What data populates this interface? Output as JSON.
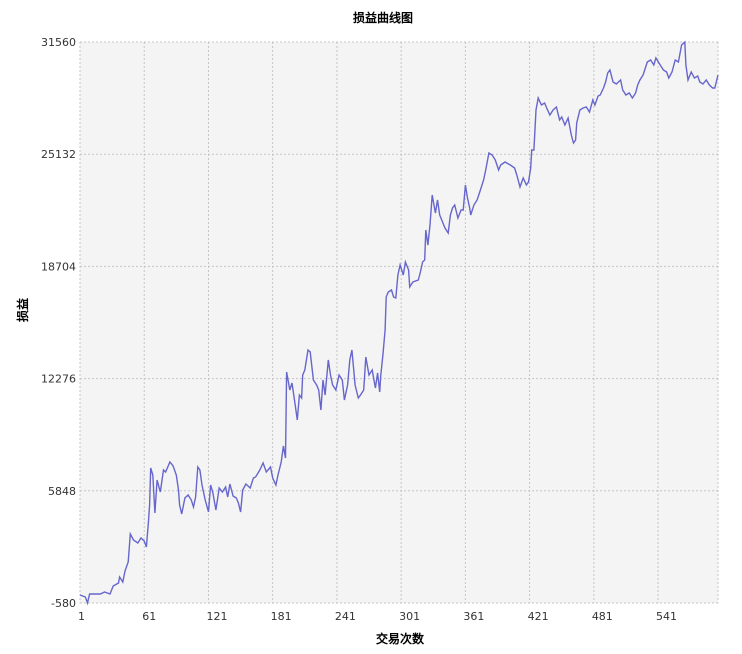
{
  "chart_data": {
    "type": "line",
    "title": "损益曲线图",
    "xlabel": "交易次数",
    "ylabel": "损益",
    "xlim": [
      1,
      597
    ],
    "ylim": [
      -580,
      31560
    ],
    "xticks": [
      1,
      61,
      121,
      181,
      241,
      301,
      361,
      421,
      481,
      541
    ],
    "yticks": [
      -580,
      5848,
      12276,
      18704,
      25132,
      31560
    ],
    "grid": true,
    "colors": {
      "line": "#6666cc",
      "plot_bg": "#f4f4f4",
      "grid": "#c4c4c4"
    },
    "series": [
      {
        "name": "损益",
        "points": [
          [
            1,
            -122
          ],
          [
            6,
            -236
          ],
          [
            8,
            -580
          ],
          [
            10,
            -64
          ],
          [
            20,
            -64
          ],
          [
            24,
            50
          ],
          [
            29,
            -64
          ],
          [
            32,
            394
          ],
          [
            37,
            566
          ],
          [
            38,
            910
          ],
          [
            41,
            623
          ],
          [
            43,
            1253
          ],
          [
            46,
            1769
          ],
          [
            48,
            3373
          ],
          [
            51,
            3029
          ],
          [
            55,
            2858
          ],
          [
            58,
            3144
          ],
          [
            61,
            2973
          ],
          [
            63,
            2629
          ],
          [
            65,
            4119
          ],
          [
            66,
            5035
          ],
          [
            67,
            7155
          ],
          [
            69,
            6754
          ],
          [
            71,
            4577
          ],
          [
            73,
            6467
          ],
          [
            76,
            5780
          ],
          [
            79,
            7040
          ],
          [
            81,
            6926
          ],
          [
            85,
            7499
          ],
          [
            88,
            7269
          ],
          [
            91,
            6754
          ],
          [
            93,
            5894
          ],
          [
            94,
            5035
          ],
          [
            96,
            4519
          ],
          [
            99,
            5436
          ],
          [
            102,
            5608
          ],
          [
            105,
            5322
          ],
          [
            107,
            4921
          ],
          [
            109,
            5494
          ],
          [
            111,
            7212
          ],
          [
            113,
            7040
          ],
          [
            115,
            6181
          ],
          [
            118,
            5322
          ],
          [
            121,
            4634
          ],
          [
            123,
            6181
          ],
          [
            125,
            5780
          ],
          [
            128,
            4749
          ],
          [
            131,
            6009
          ],
          [
            134,
            5780
          ],
          [
            137,
            6066
          ],
          [
            139,
            5494
          ],
          [
            141,
            6239
          ],
          [
            144,
            5551
          ],
          [
            147,
            5436
          ],
          [
            149,
            5150
          ],
          [
            151,
            4634
          ],
          [
            153,
            5894
          ],
          [
            156,
            6239
          ],
          [
            160,
            6009
          ],
          [
            163,
            6582
          ],
          [
            165,
            6639
          ],
          [
            169,
            7040
          ],
          [
            172,
            7441
          ],
          [
            175,
            6926
          ],
          [
            179,
            7212
          ],
          [
            181,
            6582
          ],
          [
            184,
            6181
          ],
          [
            186,
            6754
          ],
          [
            189,
            7499
          ],
          [
            191,
            8415
          ],
          [
            193,
            7728
          ],
          [
            194,
            12655
          ],
          [
            197,
            11623
          ],
          [
            199,
            12024
          ],
          [
            202,
            10763
          ],
          [
            204,
            9904
          ],
          [
            206,
            11336
          ],
          [
            208,
            11164
          ],
          [
            209,
            12482
          ],
          [
            211,
            12769
          ],
          [
            214,
            13915
          ],
          [
            216,
            13800
          ],
          [
            219,
            12196
          ],
          [
            222,
            11910
          ],
          [
            224,
            11623
          ],
          [
            226,
            10477
          ],
          [
            228,
            12196
          ],
          [
            230,
            11336
          ],
          [
            233,
            13341
          ],
          [
            235,
            12482
          ],
          [
            237,
            11910
          ],
          [
            240,
            11623
          ],
          [
            243,
            12482
          ],
          [
            246,
            12196
          ],
          [
            248,
            11050
          ],
          [
            251,
            11910
          ],
          [
            253,
            13341
          ],
          [
            255,
            13915
          ],
          [
            258,
            11910
          ],
          [
            261,
            11164
          ],
          [
            263,
            11336
          ],
          [
            266,
            11623
          ],
          [
            268,
            13513
          ],
          [
            271,
            12482
          ],
          [
            274,
            12769
          ],
          [
            277,
            11738
          ],
          [
            279,
            12597
          ],
          [
            281,
            11508
          ],
          [
            282,
            12482
          ],
          [
            284,
            13628
          ],
          [
            286,
            15060
          ],
          [
            287,
            16951
          ],
          [
            289,
            17237
          ],
          [
            292,
            17352
          ],
          [
            294,
            16951
          ],
          [
            296,
            16894
          ],
          [
            298,
            18211
          ],
          [
            300,
            18784
          ],
          [
            303,
            18211
          ],
          [
            305,
            18956
          ],
          [
            308,
            18498
          ],
          [
            309,
            17524
          ],
          [
            312,
            17811
          ],
          [
            317,
            17925
          ],
          [
            319,
            18383
          ],
          [
            321,
            18956
          ],
          [
            323,
            19071
          ],
          [
            324,
            20789
          ],
          [
            326,
            19930
          ],
          [
            328,
            21076
          ],
          [
            330,
            22794
          ],
          [
            333,
            21763
          ],
          [
            335,
            22508
          ],
          [
            337,
            21649
          ],
          [
            342,
            20904
          ],
          [
            345,
            20617
          ],
          [
            347,
            21649
          ],
          [
            349,
            22050
          ],
          [
            351,
            22222
          ],
          [
            354,
            21477
          ],
          [
            357,
            21935
          ],
          [
            359,
            21935
          ],
          [
            361,
            23367
          ],
          [
            363,
            22623
          ],
          [
            365,
            22050
          ],
          [
            366,
            21649
          ],
          [
            369,
            22222
          ],
          [
            372,
            22508
          ],
          [
            375,
            23081
          ],
          [
            378,
            23654
          ],
          [
            380,
            24227
          ],
          [
            383,
            25201
          ],
          [
            386,
            25086
          ],
          [
            389,
            24800
          ],
          [
            392,
            24227
          ],
          [
            394,
            24513
          ],
          [
            398,
            24685
          ],
          [
            403,
            24513
          ],
          [
            407,
            24341
          ],
          [
            409,
            23940
          ],
          [
            412,
            23253
          ],
          [
            415,
            23768
          ],
          [
            418,
            23367
          ],
          [
            420,
            23539
          ],
          [
            422,
            24341
          ],
          [
            423,
            25372
          ],
          [
            425,
            25372
          ],
          [
            427,
            27664
          ],
          [
            429,
            28351
          ],
          [
            432,
            27950
          ],
          [
            435,
            28065
          ],
          [
            437,
            27779
          ],
          [
            440,
            27378
          ],
          [
            443,
            27664
          ],
          [
            446,
            27836
          ],
          [
            449,
            27091
          ],
          [
            451,
            27263
          ],
          [
            454,
            26805
          ],
          [
            457,
            27206
          ],
          [
            460,
            26232
          ],
          [
            462,
            25774
          ],
          [
            464,
            25945
          ],
          [
            465,
            26919
          ],
          [
            468,
            27664
          ],
          [
            471,
            27779
          ],
          [
            474,
            27836
          ],
          [
            477,
            27550
          ],
          [
            480,
            28237
          ],
          [
            482,
            27950
          ],
          [
            485,
            28466
          ],
          [
            487,
            28524
          ],
          [
            490,
            28925
          ],
          [
            492,
            29268
          ],
          [
            494,
            29784
          ],
          [
            496,
            29956
          ],
          [
            499,
            29268
          ],
          [
            502,
            29154
          ],
          [
            506,
            29383
          ],
          [
            508,
            28810
          ],
          [
            511,
            28524
          ],
          [
            514,
            28638
          ],
          [
            517,
            28352
          ],
          [
            520,
            28638
          ],
          [
            522,
            29096
          ],
          [
            524,
            29383
          ],
          [
            527,
            29669
          ],
          [
            531,
            30414
          ],
          [
            534,
            30529
          ],
          [
            537,
            30242
          ],
          [
            539,
            30643
          ],
          [
            543,
            30242
          ],
          [
            546,
            29956
          ],
          [
            549,
            29841
          ],
          [
            551,
            29497
          ],
          [
            554,
            29841
          ],
          [
            557,
            30529
          ],
          [
            560,
            30414
          ],
          [
            563,
            31388
          ],
          [
            566,
            31560
          ],
          [
            567,
            30242
          ],
          [
            569,
            29383
          ],
          [
            572,
            29841
          ],
          [
            575,
            29497
          ],
          [
            578,
            29612
          ],
          [
            580,
            29268
          ],
          [
            583,
            29154
          ],
          [
            586,
            29383
          ],
          [
            589,
            29096
          ],
          [
            592,
            28925
          ],
          [
            594,
            28925
          ],
          [
            597,
            29669
          ]
        ]
      }
    ]
  }
}
